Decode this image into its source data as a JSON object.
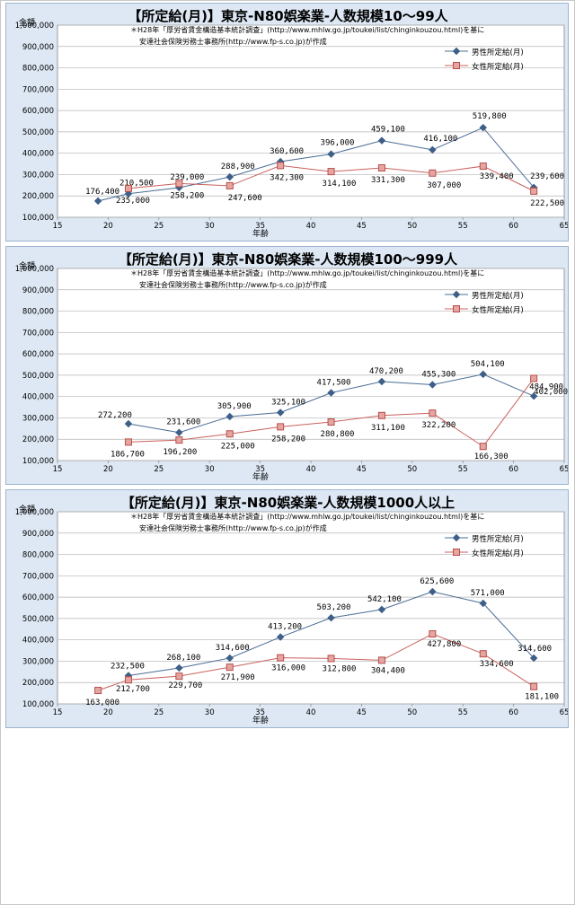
{
  "common": {
    "y_caption": "金額",
    "x_label": "年齢",
    "note_line1": "＊H28年「厚労省賃金構造基本統計調査」(http://www.mhlw.go.jp/toukei/list/chinginkouzou.html)を基に",
    "note_line2": "安達社会保険労務士事務所(http://www.fp-s.co.jp)が作成",
    "male_color": "#4a6d96",
    "female_color": "#c9615c"
  },
  "chart_data": [
    {
      "type": "line",
      "title": "【所定給(月)】東京-N80娯楽業-人数規模10～99人",
      "xlim": [
        15,
        65
      ],
      "ylim": [
        100000,
        1000000
      ],
      "xticks": [
        15,
        20,
        25,
        30,
        35,
        40,
        45,
        50,
        55,
        60,
        65
      ],
      "yticks": [
        100000,
        200000,
        300000,
        400000,
        500000,
        600000,
        700000,
        800000,
        900000,
        1000000
      ],
      "ytick_labels": [
        "100,000",
        "200,000",
        "300,000",
        "400,000",
        "500,000",
        "600,000",
        "700,000",
        "800,000",
        "900,000",
        "1,000,000"
      ],
      "legend": [
        "男性所定給(月)",
        "女性所定給(月)"
      ],
      "series": [
        {
          "name": "男性所定給(月)",
          "x": [
            19,
            22,
            27,
            32,
            37,
            42,
            47,
            52,
            57,
            62
          ],
          "values": [
            176400,
            210500,
            239000,
            288900,
            360600,
            396000,
            459100,
            416100,
            519800,
            239600
          ],
          "labels": [
            "176,400",
            "210,500",
            "239,000",
            "288,900",
            "360,600",
            "396,000",
            "459,100",
            "416,100",
            "519,800",
            "239,600"
          ]
        },
        {
          "name": "女性所定給(月)",
          "x": [
            22,
            27,
            32,
            37,
            42,
            47,
            52,
            57,
            62
          ],
          "values": [
            235000,
            258200,
            247600,
            342300,
            314100,
            331300,
            307000,
            339400,
            222500
          ],
          "labels": [
            "235,000",
            "258,200",
            "247,600",
            "342,300",
            "314,100",
            "331,300",
            "307,000",
            "339,400",
            "222,500"
          ]
        }
      ]
    },
    {
      "type": "line",
      "title": "【所定給(月)】東京-N80娯楽業-人数規模100～999人",
      "xlim": [
        15,
        65
      ],
      "ylim": [
        100000,
        1000000
      ],
      "xticks": [
        15,
        20,
        25,
        30,
        35,
        40,
        45,
        50,
        55,
        60,
        65
      ],
      "yticks": [
        100000,
        200000,
        300000,
        400000,
        500000,
        600000,
        700000,
        800000,
        900000,
        1000000
      ],
      "ytick_labels": [
        "100,000",
        "200,000",
        "300,000",
        "400,000",
        "500,000",
        "600,000",
        "700,000",
        "800,000",
        "900,000",
        "1,000,000"
      ],
      "legend": [
        "男性所定給(月)",
        "女性所定給(月)"
      ],
      "series": [
        {
          "name": "男性所定給(月)",
          "x": [
            22,
            27,
            32,
            37,
            42,
            47,
            52,
            57,
            62
          ],
          "values": [
            272200,
            231600,
            305900,
            325100,
            417500,
            470200,
            455300,
            504100,
            402000
          ],
          "labels": [
            "272,200",
            "231,600",
            "305,900",
            "325,100",
            "417,500",
            "470,200",
            "455,300",
            "504,100",
            "402,000"
          ]
        },
        {
          "name": "女性所定給(月)",
          "x": [
            22,
            27,
            32,
            37,
            42,
            47,
            52,
            57,
            62
          ],
          "values": [
            186700,
            196200,
            225000,
            258200,
            280800,
            311100,
            322200,
            166300,
            484900
          ],
          "labels": [
            "186,700",
            "196,200",
            "225,000",
            "258,200",
            "280,800",
            "311,100",
            "322,200",
            "166,300",
            "484,900"
          ]
        }
      ]
    },
    {
      "type": "line",
      "title": "【所定給(月)】東京-N80娯楽業-人数規模1000人以上",
      "xlim": [
        15,
        65
      ],
      "ylim": [
        100000,
        1000000
      ],
      "xticks": [
        15,
        20,
        25,
        30,
        35,
        40,
        45,
        50,
        55,
        60,
        65
      ],
      "yticks": [
        100000,
        200000,
        300000,
        400000,
        500000,
        600000,
        700000,
        800000,
        900000,
        1000000
      ],
      "ytick_labels": [
        "100,000",
        "200,000",
        "300,000",
        "400,000",
        "500,000",
        "600,000",
        "700,000",
        "800,000",
        "900,000",
        "1,000,000"
      ],
      "legend": [
        "男性所定給(月)",
        "女性所定給(月)"
      ],
      "series": [
        {
          "name": "男性所定給(月)",
          "x": [
            22,
            27,
            32,
            37,
            42,
            47,
            52,
            57,
            62
          ],
          "values": [
            232500,
            268100,
            314600,
            413200,
            503200,
            542100,
            625600,
            571000,
            314600
          ],
          "labels": [
            "232,500",
            "268,100",
            "314,600",
            "413,200",
            "503,200",
            "542,100",
            "625,600",
            "571,000",
            "314,600"
          ]
        },
        {
          "name": "女性所定給(月)",
          "x": [
            19,
            22,
            27,
            32,
            37,
            42,
            47,
            52,
            57,
            62
          ],
          "values": [
            163000,
            212700,
            229700,
            271900,
            316000,
            312800,
            304400,
            427800,
            334600,
            181100
          ],
          "labels": [
            "163,000",
            "212,700",
            "229,700",
            "271,900",
            "316,000",
            "312,800",
            "304,400",
            "427,800",
            "334,600",
            "181,100"
          ]
        }
      ]
    }
  ]
}
